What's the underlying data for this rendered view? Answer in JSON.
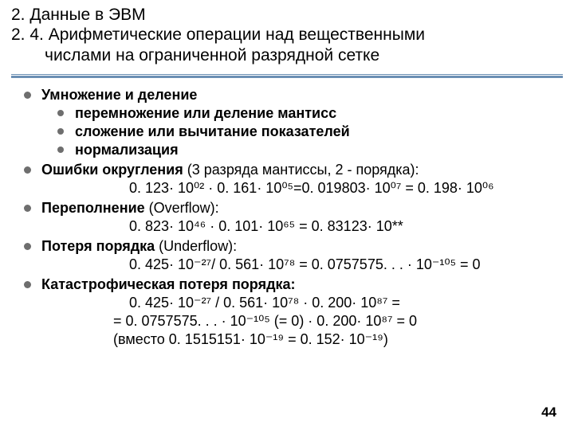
{
  "title": {
    "line1": "2. Данные в ЭВМ",
    "line2": "2. 4. Арифметические операции над вещественными",
    "line3": "числами на ограниченной разрядной сетке"
  },
  "items": {
    "muldiv": {
      "head": "Умножение и деление",
      "sub1": "перемножение или деление мантисс",
      "sub2": "сложение или вычитание показателей",
      "sub3": "нормализация"
    },
    "rounding": {
      "head": "Ошибки округления",
      "tail": " (3 разряда мантиссы, 2 - порядка):",
      "expr": "0. 123· 10⁰² · 0. 161· 10⁰⁵=0. 019803· 10⁰⁷ = 0. 198· 10⁰⁶"
    },
    "overflow": {
      "head": "Переполнение",
      "tail": " (Overflow):",
      "expr": "0. 823· 10⁴⁶ · 0. 101· 10⁶⁵ = 0. 83123· 10**"
    },
    "underflow": {
      "head": "Потеря порядка",
      "tail": " (Underflow):",
      "expr": "0. 425· 10⁻²⁷/ 0. 561· 10⁷⁸ = 0. 0757575. . . · 10⁻¹⁰⁵ = 0"
    },
    "catastrophic": {
      "head": "Катастрофическая потеря порядка:",
      "e1": "0. 425· 10⁻²⁷ / 0. 561· 10⁷⁸ · 0. 200· 10⁸⁷ =",
      "e2": "= 0. 0757575. . . · 10⁻¹⁰⁵ (= 0) · 0. 200· 10⁸⁷ = 0",
      "e3": "(вместо 0. 1515151· 10⁻¹⁹ = 0. 152· 10⁻¹⁹)"
    }
  },
  "page": "44"
}
